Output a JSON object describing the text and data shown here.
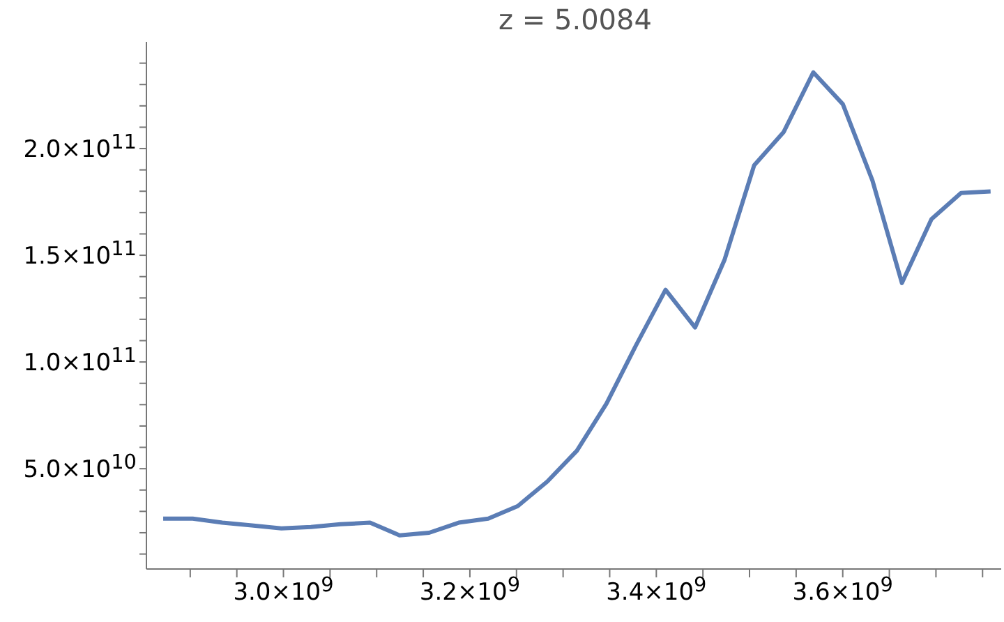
{
  "chart_data": {
    "type": "line",
    "title": "z = 5.0084",
    "x": [
      2871000000,
      2902700000,
      2934400000,
      2966100000,
      2997800000,
      3029500000,
      3061200000,
      3092900000,
      3124600000,
      3156300000,
      3188000000,
      3219700000,
      3251400000,
      3283100000,
      3314800000,
      3346500000,
      3378200000,
      3409900000,
      3441600000,
      3473300000,
      3505000000,
      3536700000,
      3568400000,
      3600100000,
      3631800000,
      3663500000,
      3695200000,
      3726900000,
      3758600000
    ],
    "series": [
      {
        "color": "#5b7db5",
        "values": [
          26600000000,
          26600000000,
          24700000000,
          23400000000,
          22000000000,
          22700000000,
          24000000000,
          24700000000,
          18800000000,
          20000000000,
          24700000000,
          26600000000,
          32500000000,
          44000000000,
          58400000000,
          80500000000,
          107800000000,
          133800000000,
          116200000000,
          148000000000,
          192200000000,
          207800000000,
          235700000000,
          220800000000,
          185100000000,
          137000000000,
          166900000000,
          179200000000,
          179900000000
        ]
      }
    ],
    "xlim": [
      2853000000,
      3770000000
    ],
    "xticks": [
      {
        "value": 2900000000,
        "label": null
      },
      {
        "value": 2950000000,
        "label": null
      },
      {
        "value": 3000000000,
        "label": "3.0×10$^{9}$"
      },
      {
        "value": 3050000000,
        "label": null
      },
      {
        "value": 3100000000,
        "label": null
      },
      {
        "value": 3150000000,
        "label": null
      },
      {
        "value": 3200000000,
        "label": "3.2×10$^{9}$"
      },
      {
        "value": 3250000000,
        "label": null
      },
      {
        "value": 3300000000,
        "label": null
      },
      {
        "value": 3350000000,
        "label": null
      },
      {
        "value": 3400000000,
        "label": "3.4×10$^{9}$"
      },
      {
        "value": 3450000000,
        "label": null
      },
      {
        "value": 3500000000,
        "label": null
      },
      {
        "value": 3550000000,
        "label": null
      },
      {
        "value": 3600000000,
        "label": "3.6×10$^{9}$"
      },
      {
        "value": 3650000000,
        "label": null
      },
      {
        "value": 3700000000,
        "label": null
      },
      {
        "value": 3750000000,
        "label": null
      }
    ],
    "ylim": [
      3000000000,
      250000000000
    ],
    "yticks": [
      {
        "value": 10000000000,
        "label": null
      },
      {
        "value": 20000000000,
        "label": null
      },
      {
        "value": 30000000000,
        "label": null
      },
      {
        "value": 40000000000,
        "label": null
      },
      {
        "value": 50000000000,
        "label": "5.0×10$^{10}$"
      },
      {
        "value": 60000000000,
        "label": null
      },
      {
        "value": 70000000000,
        "label": null
      },
      {
        "value": 80000000000,
        "label": null
      },
      {
        "value": 90000000000,
        "label": null
      },
      {
        "value": 100000000000,
        "label": "1.0×10$^{11}$"
      },
      {
        "value": 110000000000,
        "label": null
      },
      {
        "value": 120000000000,
        "label": null
      },
      {
        "value": 130000000000,
        "label": null
      },
      {
        "value": 140000000000,
        "label": null
      },
      {
        "value": 150000000000,
        "label": "1.5×10$^{11}$"
      },
      {
        "value": 160000000000,
        "label": null
      },
      {
        "value": 170000000000,
        "label": null
      },
      {
        "value": 180000000000,
        "label": null
      },
      {
        "value": 190000000000,
        "label": null
      },
      {
        "value": 200000000000,
        "label": "2.0×10$^{11}$"
      },
      {
        "value": 210000000000,
        "label": null
      },
      {
        "value": 220000000000,
        "label": null
      },
      {
        "value": 230000000000,
        "label": null
      },
      {
        "value": 240000000000,
        "label": null
      }
    ],
    "grid": false,
    "legend": false,
    "marker": "none",
    "line_style": "solid"
  }
}
